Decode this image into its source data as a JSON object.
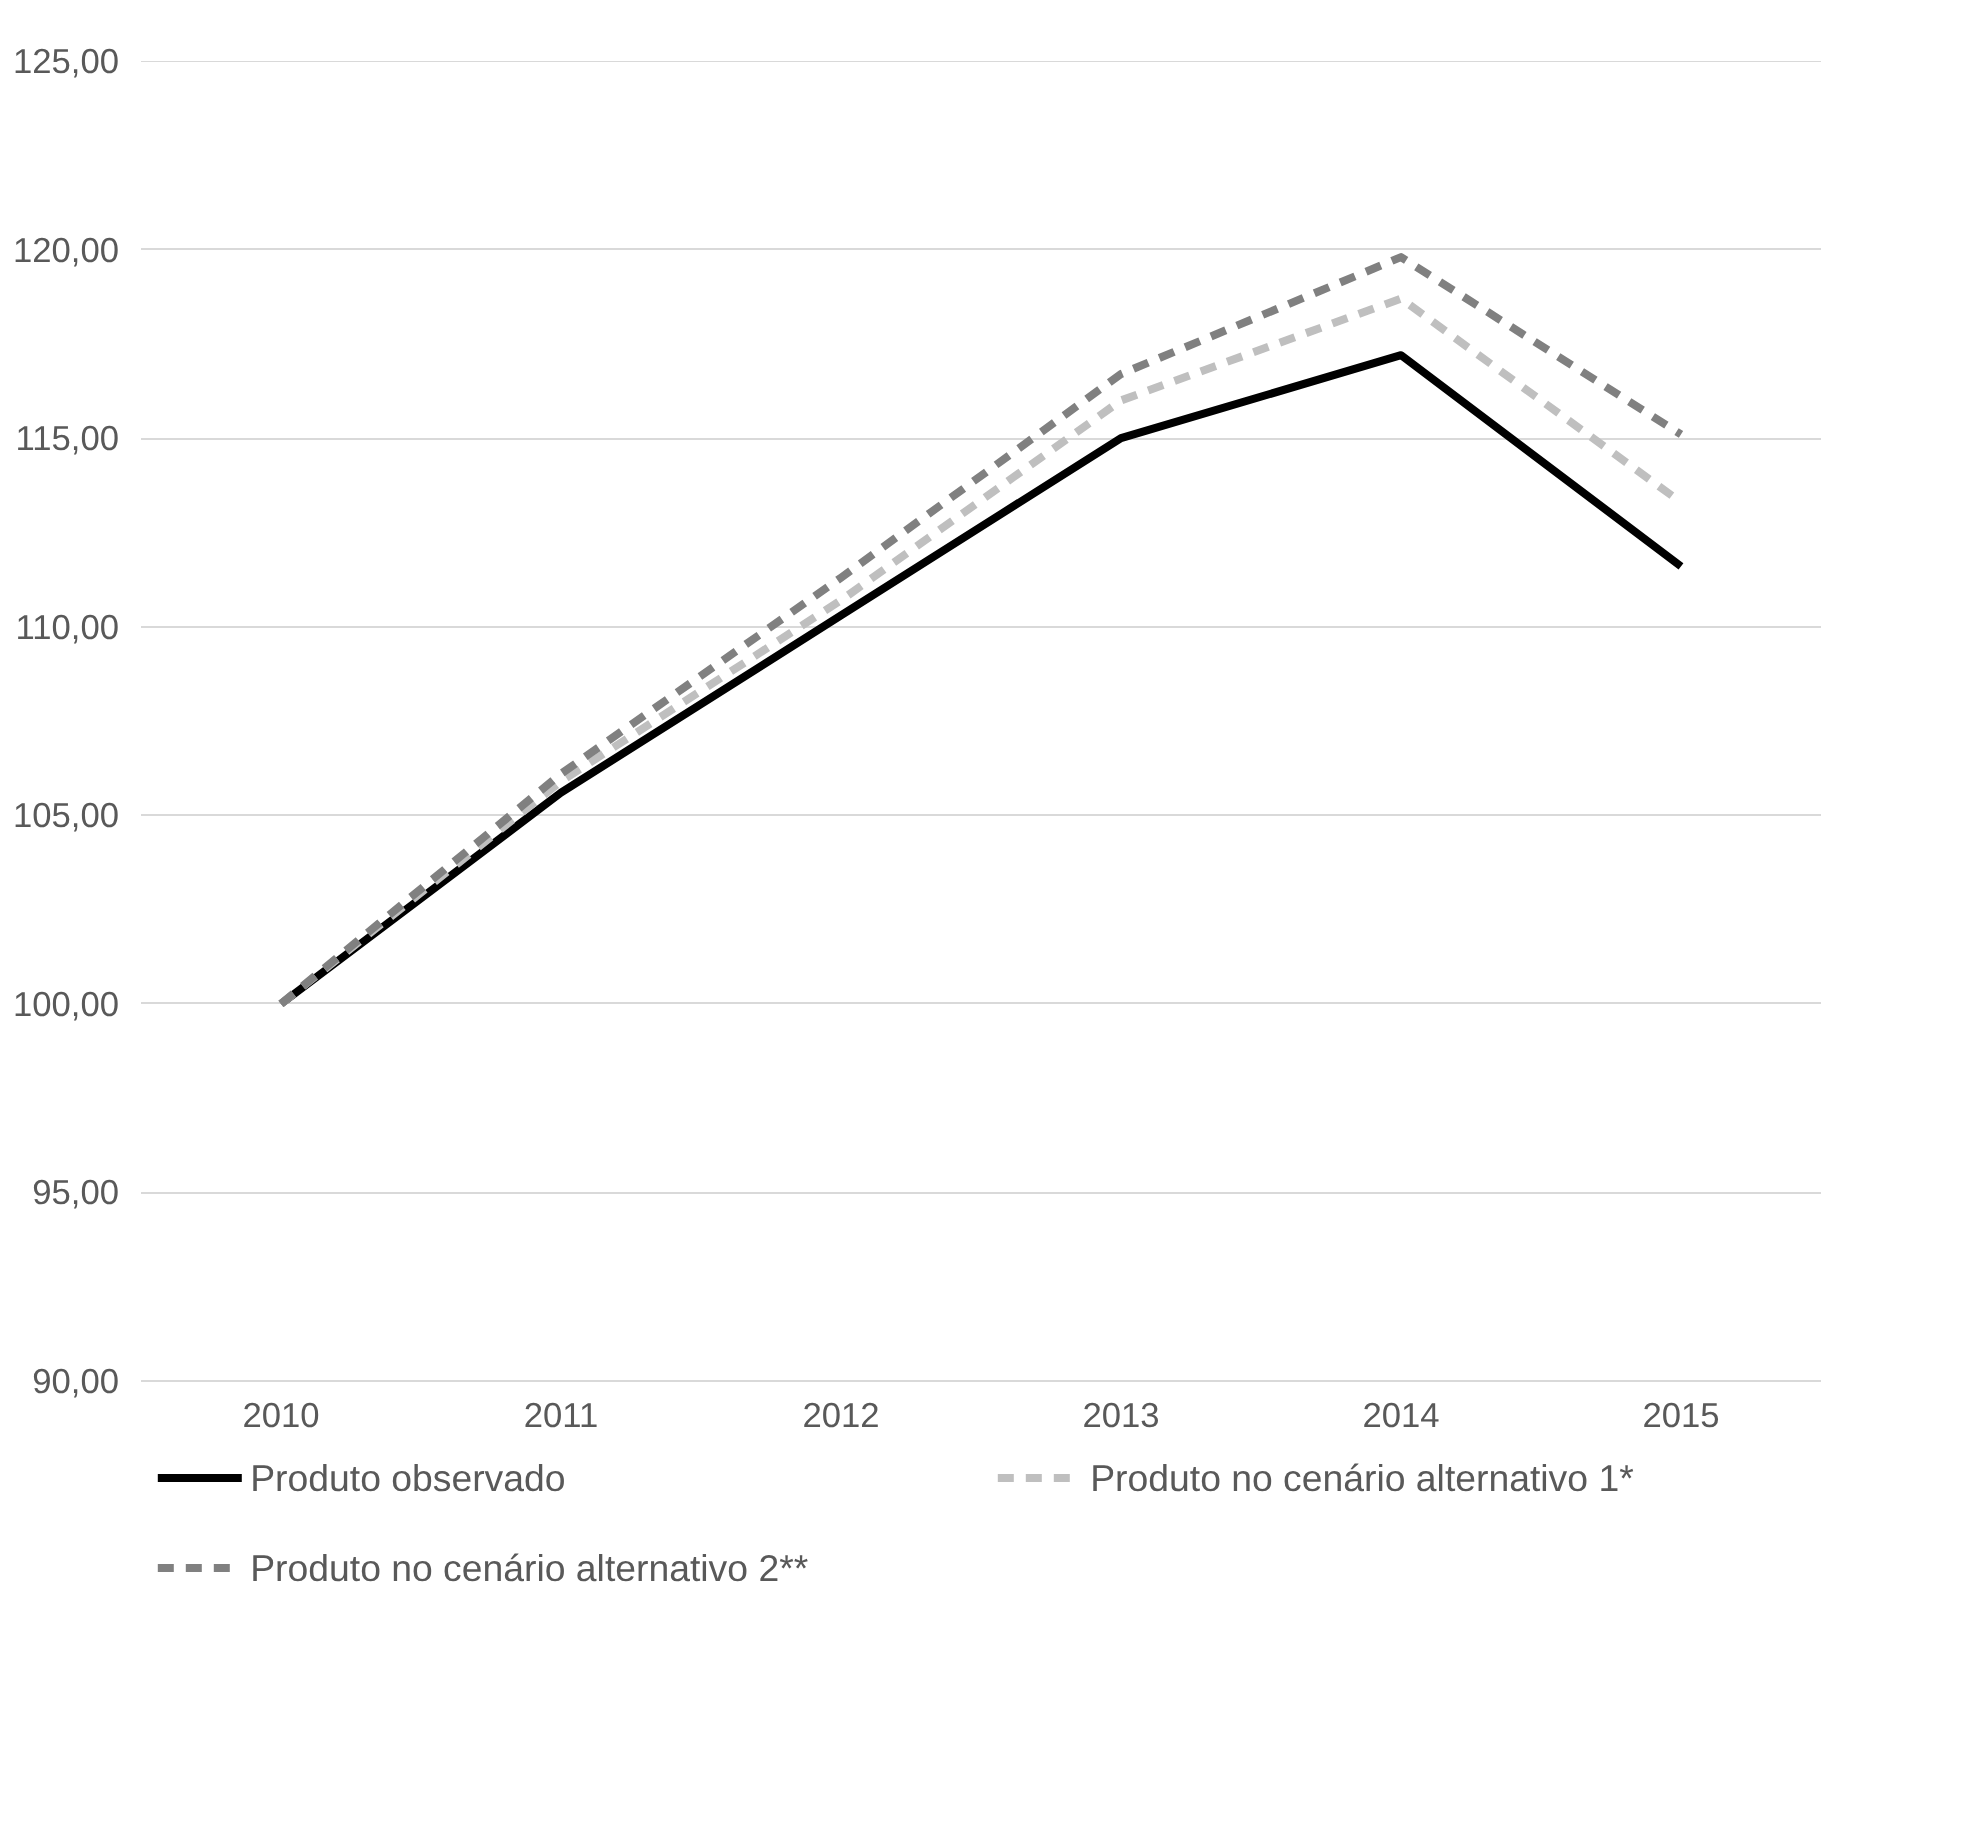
{
  "chart_data": {
    "type": "line",
    "categories": [
      "2010",
      "2011",
      "2012",
      "2013",
      "2014",
      "2015"
    ],
    "ylim": [
      90,
      125
    ],
    "yticks": [
      {
        "value": 90,
        "label": "90,00"
      },
      {
        "value": 95,
        "label": "95,00"
      },
      {
        "value": 100,
        "label": "100,00"
      },
      {
        "value": 105,
        "label": "105,00"
      },
      {
        "value": 110,
        "label": "110,00"
      },
      {
        "value": 115,
        "label": "115,00"
      },
      {
        "value": 120,
        "label": "120,00"
      },
      {
        "value": 125,
        "label": "125,00"
      }
    ],
    "grid": "y",
    "legend": "bottom",
    "marker": "none",
    "series": [
      {
        "name": "Produto observado",
        "color": "#000000",
        "line_style": "solid",
        "values": [
          100,
          105.6,
          110.3,
          115.0,
          117.2,
          111.6
        ]
      },
      {
        "name": "Produto no cenário alternativo 1*",
        "color": "#bfbfbf",
        "line_style": "dashed",
        "values": [
          100,
          105.9,
          110.7,
          116.0,
          118.7,
          113.3
        ]
      },
      {
        "name": "Produto no cenário alternativo 2**",
        "color": "#808080",
        "line_style": "dashed",
        "values": [
          100,
          106.1,
          111.3,
          116.7,
          119.8,
          115.1
        ]
      }
    ]
  }
}
